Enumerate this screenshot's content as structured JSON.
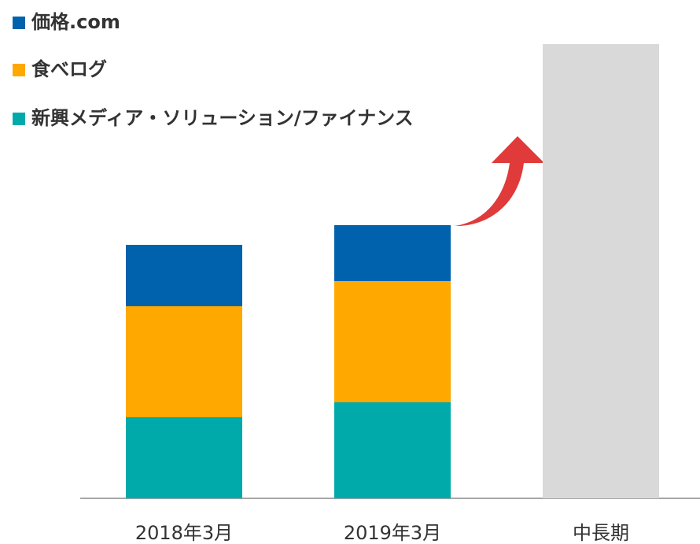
{
  "chart_data": {
    "type": "stacked_bar",
    "categories": [
      "2018年3月",
      "2019年3月",
      "中長期"
    ],
    "series": [
      {
        "name": "新興メディア・ソリューション/ファイナンス",
        "color": "#00aaaa",
        "values": [
          103,
          122,
          null
        ]
      },
      {
        "name": "食べログ",
        "color": "#ffa800",
        "values": [
          141,
          154,
          null
        ]
      },
      {
        "name": "価格.com",
        "color": "#0062ad",
        "values": [
          78,
          71,
          null
        ]
      },
      {
        "color": "#d9d9d9",
        "values": [
          null,
          null,
          577
        ]
      }
    ],
    "ylim": [
      0,
      633
    ],
    "legend": "top-left"
  }
}
